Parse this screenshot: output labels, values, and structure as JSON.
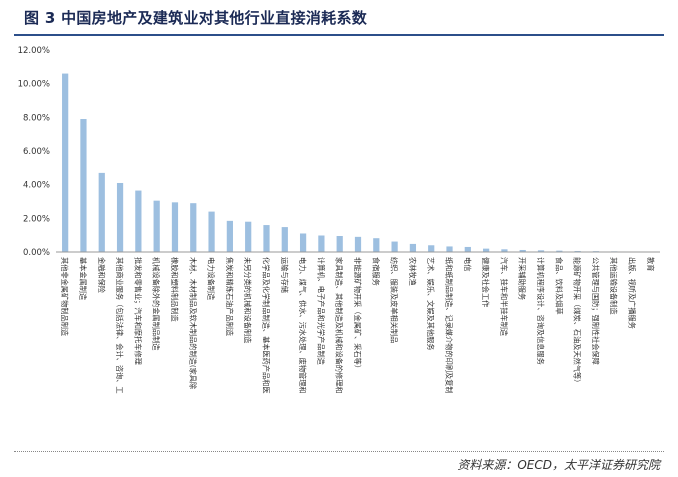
{
  "figure": {
    "title": "图 3   中国房地产及建筑业对其他行业直接消耗系数",
    "source": "资料来源：OECD，太平洋证券研究院"
  },
  "colors": {
    "bar": "#9dbfe0",
    "axis": "#999999",
    "text": "#333333"
  },
  "chart_data": {
    "type": "bar",
    "ylim": [
      0,
      0.12
    ],
    "ytick_labels": [
      "0.00%",
      "2.00%",
      "4.00%",
      "6.00%",
      "8.00%",
      "10.00%",
      "12.00%"
    ],
    "grid": false,
    "categories": [
      "其他非金属矿物制品制造",
      "基本金属制造",
      "金融和保险",
      "其他商业服务（包括法律、会计、咨询、工",
      "批发和零售业；汽车和摩托车修理",
      "机械设备除外的金属制品制造",
      "橡胶和塑料制品制造",
      "木材、木材制品及软木制品的制造(家具除",
      "电力设备制造",
      "焦炭和精炼石油产品制造",
      "未另分类的机械和设备制造",
      "化学品及化学制品制造、基本医药产品和医",
      "运输与存储",
      "电力、煤气、供水、污水处理、废物管理和",
      "计算机、电子产品和光学产品制造",
      "家具制造、其他制造及机械和设备的修理和",
      "非能源矿物开采（金属矿、采石等）",
      "食宿服务",
      "纺织、服装及皮革相关制品",
      "农林牧渔",
      "艺术、娱乐、文娱及其他服务",
      "纸和纸制品制造、记录媒介物的印刷及复制",
      "电信",
      "健康及社会工作",
      "汽车、挂车和半挂车制造",
      "开采辅助服务",
      "计算机程序设计、咨询及信息服务",
      "食品、饮料及烟草",
      "能源矿物开采（煤炭、石油及天然气等）",
      "公共管理与国防；强制性社会保障",
      "其他运输设备制造",
      "出版、视听及广播服务",
      "教育"
    ],
    "values": [
      0.106,
      0.079,
      0.047,
      0.041,
      0.0365,
      0.0305,
      0.0295,
      0.029,
      0.024,
      0.0185,
      0.018,
      0.016,
      0.0148,
      0.011,
      0.0098,
      0.0095,
      0.009,
      0.0082,
      0.0062,
      0.0048,
      0.004,
      0.0033,
      0.003,
      0.002,
      0.0016,
      0.0012,
      0.001,
      0.0008,
      0.0006,
      0.0005,
      0.0004,
      0.0003,
      0.0002
    ]
  }
}
